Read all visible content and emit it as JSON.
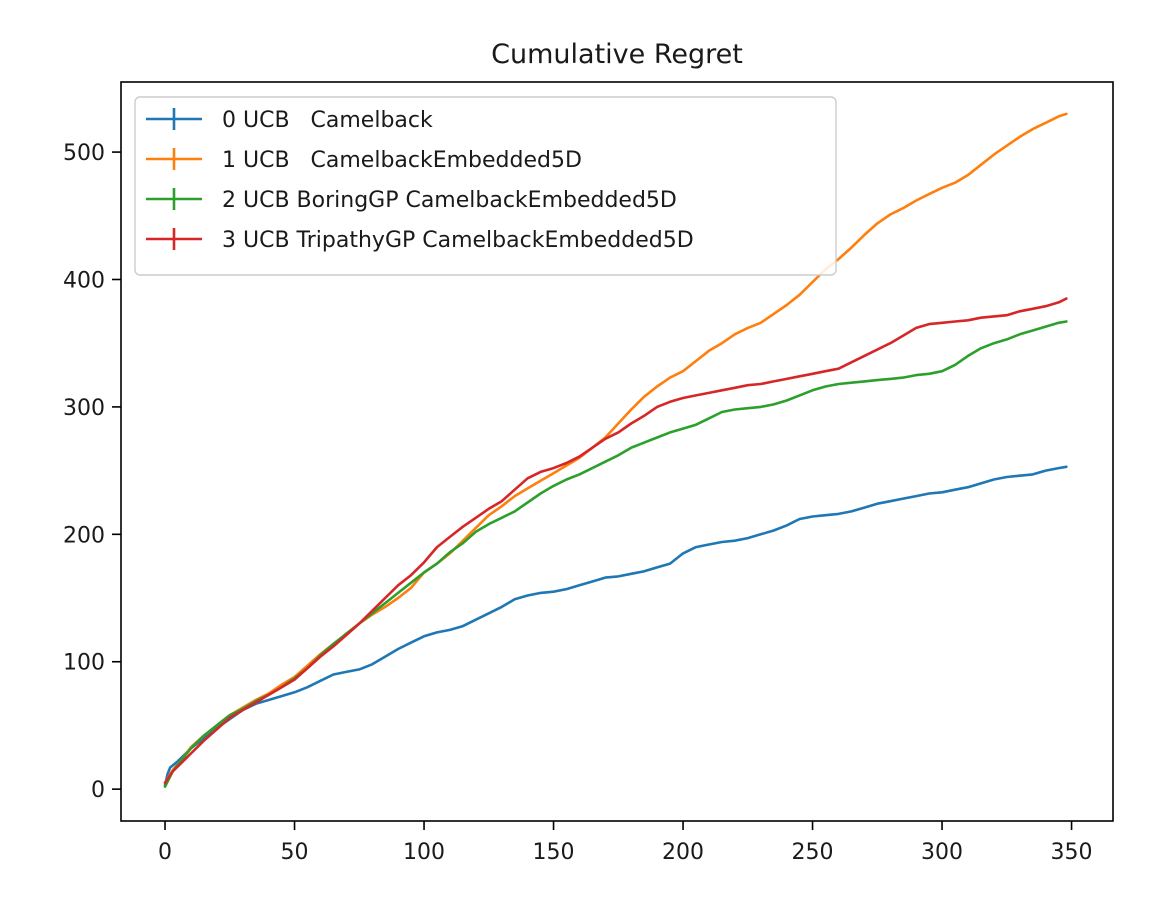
{
  "chart_data": {
    "type": "line",
    "title": "Cumulative Regret",
    "xlabel": "",
    "ylabel": "",
    "xlim": [
      -17,
      366
    ],
    "ylim": [
      -25,
      555
    ],
    "xticks": [
      0,
      50,
      100,
      150,
      200,
      250,
      300,
      350
    ],
    "yticks": [
      0,
      100,
      200,
      300,
      400,
      500
    ],
    "grid": false,
    "legend_position": "top-left",
    "series": [
      {
        "name": "0 UCB   Camelback",
        "color": "#1f77b4",
        "x": [
          0,
          1,
          2,
          5,
          10,
          15,
          20,
          25,
          30,
          35,
          40,
          45,
          50,
          55,
          60,
          65,
          70,
          75,
          80,
          85,
          90,
          95,
          100,
          105,
          110,
          115,
          120,
          125,
          130,
          135,
          140,
          145,
          150,
          155,
          160,
          165,
          170,
          175,
          180,
          185,
          190,
          195,
          200,
          205,
          210,
          215,
          220,
          225,
          230,
          235,
          240,
          245,
          250,
          255,
          260,
          265,
          270,
          275,
          280,
          285,
          290,
          295,
          300,
          305,
          310,
          315,
          320,
          325,
          330,
          335,
          340,
          345,
          348
        ],
        "y": [
          3,
          12,
          17,
          22,
          32,
          40,
          48,
          55,
          62,
          67,
          70,
          73,
          76,
          80,
          85,
          90,
          92,
          94,
          98,
          104,
          110,
          115,
          120,
          123,
          125,
          128,
          133,
          138,
          143,
          149,
          152,
          154,
          155,
          157,
          160,
          163,
          166,
          167,
          169,
          171,
          174,
          177,
          185,
          190,
          192,
          194,
          195,
          197,
          200,
          203,
          207,
          212,
          214,
          215,
          216,
          218,
          221,
          224,
          226,
          228,
          230,
          232,
          233,
          235,
          237,
          240,
          243,
          245,
          246,
          247,
          250,
          252,
          253
        ]
      },
      {
        "name": "1 UCB   CamelbackEmbedded5D",
        "color": "#ff7f0e",
        "x": [
          0,
          3,
          6,
          10,
          15,
          20,
          25,
          30,
          35,
          40,
          45,
          50,
          55,
          60,
          65,
          70,
          75,
          80,
          85,
          90,
          95,
          100,
          105,
          110,
          115,
          120,
          125,
          130,
          135,
          140,
          145,
          150,
          155,
          160,
          165,
          170,
          175,
          180,
          185,
          190,
          195,
          200,
          205,
          210,
          215,
          220,
          225,
          230,
          235,
          240,
          245,
          250,
          255,
          260,
          265,
          270,
          275,
          280,
          285,
          290,
          295,
          300,
          305,
          310,
          315,
          320,
          325,
          330,
          335,
          340,
          345,
          348
        ],
        "y": [
          5,
          15,
          22,
          33,
          42,
          50,
          58,
          64,
          70,
          75,
          82,
          88,
          97,
          106,
          114,
          121,
          130,
          137,
          143,
          150,
          158,
          170,
          177,
          185,
          195,
          205,
          215,
          222,
          230,
          236,
          242,
          248,
          254,
          260,
          268,
          276,
          287,
          298,
          308,
          316,
          323,
          328,
          336,
          344,
          350,
          357,
          362,
          366,
          373,
          380,
          388,
          398,
          408,
          416,
          425,
          435,
          444,
          451,
          456,
          462,
          467,
          472,
          476,
          482,
          490,
          498,
          505,
          512,
          518,
          523,
          528,
          530
        ]
      },
      {
        "name": "2 UCB BoringGP CamelbackEmbedded5D",
        "color": "#2ca02c",
        "x": [
          0,
          3,
          6,
          10,
          15,
          20,
          25,
          30,
          35,
          40,
          45,
          50,
          55,
          60,
          65,
          70,
          75,
          80,
          85,
          90,
          95,
          100,
          105,
          110,
          115,
          120,
          125,
          130,
          135,
          140,
          145,
          150,
          155,
          160,
          165,
          170,
          175,
          180,
          185,
          190,
          195,
          200,
          205,
          210,
          215,
          220,
          225,
          230,
          235,
          240,
          245,
          250,
          255,
          260,
          265,
          270,
          275,
          280,
          285,
          290,
          295,
          300,
          305,
          310,
          315,
          320,
          325,
          330,
          335,
          340,
          345,
          348
        ],
        "y": [
          2,
          14,
          22,
          32,
          42,
          50,
          58,
          63,
          69,
          74,
          80,
          87,
          95,
          105,
          114,
          122,
          130,
          138,
          146,
          154,
          162,
          170,
          177,
          186,
          193,
          202,
          208,
          213,
          218,
          225,
          232,
          238,
          243,
          247,
          252,
          257,
          262,
          268,
          272,
          276,
          280,
          283,
          286,
          291,
          296,
          298,
          299,
          300,
          302,
          305,
          309,
          313,
          316,
          318,
          319,
          320,
          321,
          322,
          323,
          325,
          326,
          328,
          333,
          340,
          346,
          350,
          353,
          357,
          360,
          363,
          366,
          367
        ]
      },
      {
        "name": "3 UCB TripathyGP CamelbackEmbedded5D",
        "color": "#d62728",
        "x": [
          0,
          3,
          6,
          10,
          15,
          20,
          25,
          30,
          35,
          40,
          45,
          50,
          55,
          60,
          65,
          70,
          75,
          80,
          85,
          90,
          95,
          100,
          105,
          110,
          115,
          120,
          125,
          130,
          135,
          140,
          145,
          150,
          155,
          160,
          165,
          170,
          175,
          180,
          185,
          190,
          195,
          200,
          205,
          210,
          215,
          220,
          225,
          230,
          235,
          240,
          245,
          250,
          255,
          260,
          265,
          270,
          275,
          280,
          285,
          290,
          295,
          300,
          305,
          310,
          315,
          320,
          325,
          330,
          335,
          340,
          345,
          348
        ],
        "y": [
          5,
          14,
          20,
          28,
          38,
          47,
          56,
          62,
          68,
          74,
          80,
          86,
          95,
          104,
          112,
          121,
          130,
          140,
          150,
          160,
          168,
          178,
          190,
          198,
          206,
          213,
          220,
          226,
          235,
          244,
          249,
          252,
          256,
          261,
          268,
          275,
          280,
          287,
          293,
          300,
          304,
          307,
          309,
          311,
          313,
          315,
          317,
          318,
          320,
          322,
          324,
          326,
          328,
          330,
          335,
          340,
          345,
          350,
          356,
          362,
          365,
          366,
          367,
          368,
          370,
          371,
          372,
          375,
          377,
          379,
          382,
          385
        ]
      }
    ]
  }
}
